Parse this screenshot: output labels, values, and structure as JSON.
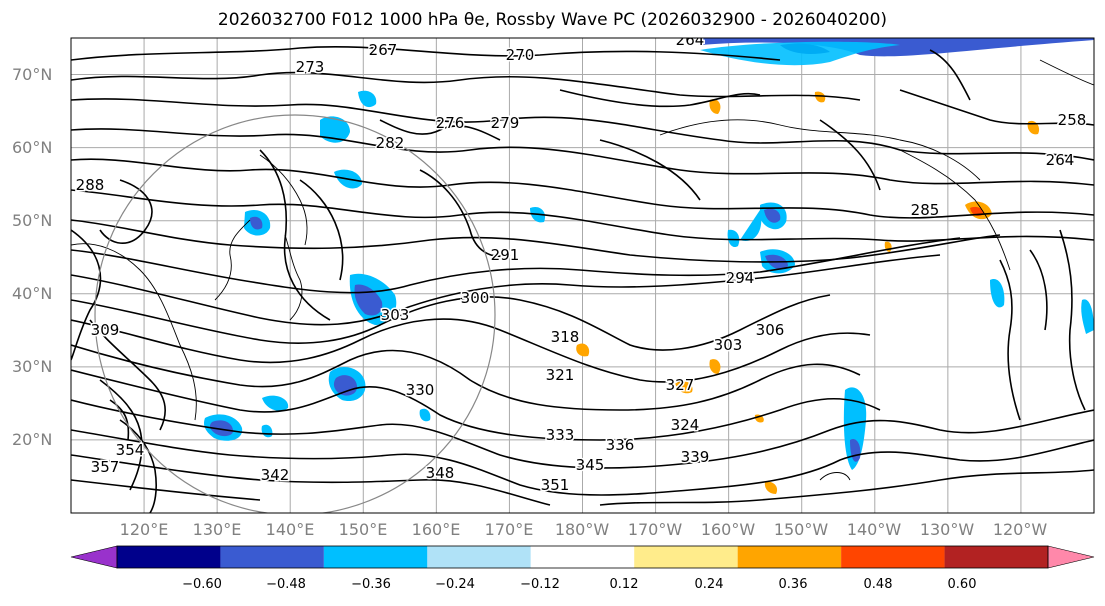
{
  "title": "2026032700 F012 1000 hPa θe, Rossby Wave PC (2026032900 - 2026040200)",
  "map": {
    "projection": "equirectangular",
    "lon_range": [
      110,
      250
    ],
    "lat_range": [
      10,
      75
    ],
    "lat_labels": [
      "20°N",
      "30°N",
      "40°N",
      "50°N",
      "60°N",
      "70°N"
    ],
    "lon_labels": [
      "120°E",
      "130°E",
      "140°E",
      "150°E",
      "160°E",
      "170°E",
      "180°W",
      "170°W",
      "160°W",
      "150°W",
      "140°W",
      "130°W",
      "120°W"
    ],
    "gridlines": true,
    "contour_labels": [
      "267",
      "270",
      "264",
      "273",
      "276",
      "279",
      "282",
      "288",
      "291",
      "294",
      "285",
      "264",
      "258",
      "300",
      "303",
      "306",
      "303",
      "318",
      "321",
      "324",
      "327",
      "330",
      "333",
      "336",
      "339",
      "342",
      "345",
      "348",
      "351",
      "354",
      "357",
      "309"
    ]
  },
  "colorbar": {
    "ticks": [
      "−0.60",
      "−0.48",
      "−0.36",
      "−0.24",
      "−0.12",
      "0.12",
      "0.24",
      "0.36",
      "0.48",
      "0.60"
    ],
    "colors": [
      "#9932cc",
      "#00008b",
      "#3a5bd1",
      "#00bfff",
      "#b0e2f7",
      "#ffffff",
      "#ffec8b",
      "#ffa500",
      "#ff4500",
      "#b22222",
      "#ff88aa"
    ]
  }
}
